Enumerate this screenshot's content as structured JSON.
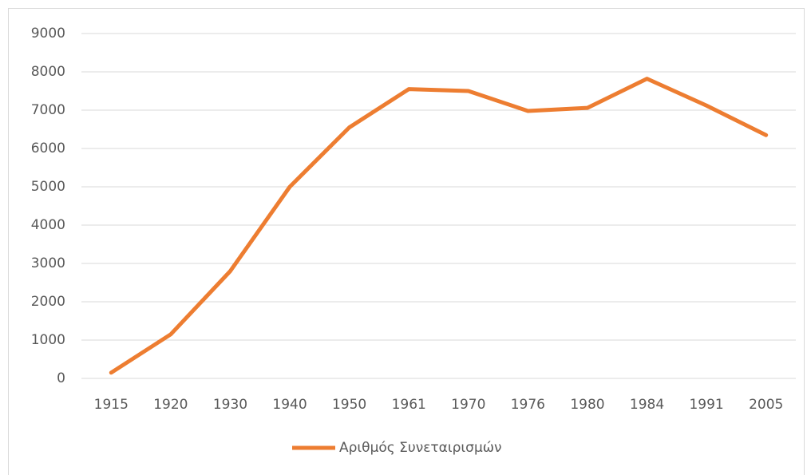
{
  "chart_data": {
    "type": "line",
    "categories": [
      "1915",
      "1920",
      "1930",
      "1940",
      "1950",
      "1961",
      "1970",
      "1976",
      "1980",
      "1984",
      "1991",
      "2005"
    ],
    "series": [
      {
        "name": "Αριθμός Συνεταιρισμών",
        "color": "#ed7d31",
        "values": [
          150,
          1150,
          2800,
          5000,
          6550,
          7550,
          7500,
          6980,
          7060,
          7820,
          7120,
          6350
        ]
      }
    ],
    "ylim": [
      0,
      9000
    ],
    "yticks": [
      0,
      1000,
      2000,
      3000,
      4000,
      5000,
      6000,
      7000,
      8000,
      9000
    ],
    "grid": true,
    "legend": "bottom"
  }
}
